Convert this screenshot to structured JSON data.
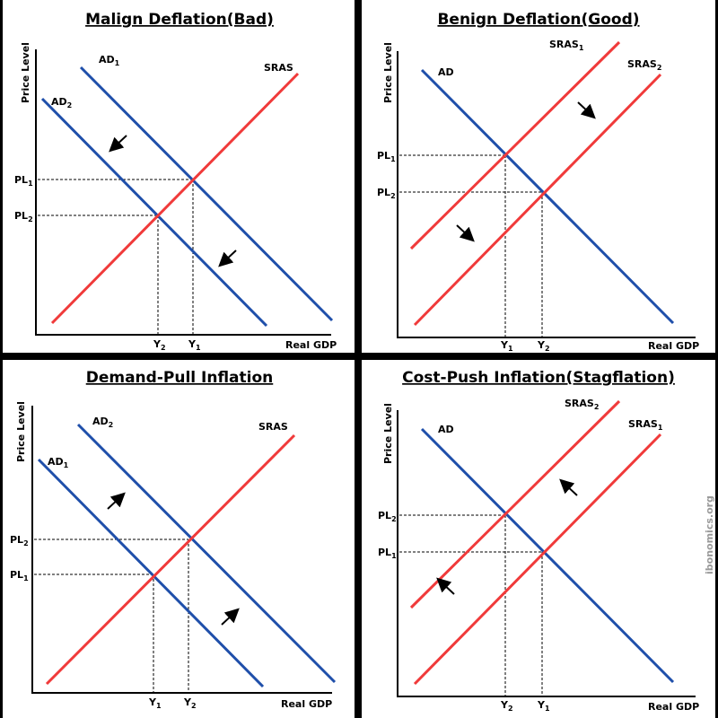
{
  "colors": {
    "demand": "#1f4faa",
    "supply": "#f03a3a",
    "axis": "#000000",
    "frame": "#000000",
    "watermark": "#9a9a9a"
  },
  "watermark": "ibonomics.org",
  "axes": {
    "y": "Price Level",
    "x": "Real GDP"
  },
  "panels": [
    {
      "title": "Malign Deflation(Bad)",
      "ad1": "AD",
      "ad1_sub": "1",
      "ad2": "AD",
      "ad2_sub": "2",
      "sras": "SRAS",
      "pl_a": "PL",
      "pl_a_sub": "1",
      "pl_b": "PL",
      "pl_b_sub": "2",
      "y_a": "Y",
      "y_a_sub": "2",
      "y_b": "Y",
      "y_b_sub": "1",
      "arrow_direction": "down-left"
    },
    {
      "title": "Benign Deflation(Good)",
      "ad": "AD",
      "sras1": "SRAS",
      "sras1_sub": "1",
      "sras2": "SRAS",
      "sras2_sub": "2",
      "pl_a": "PL",
      "pl_a_sub": "1",
      "pl_b": "PL",
      "pl_b_sub": "2",
      "y_a": "Y",
      "y_a_sub": "1",
      "y_b": "Y",
      "y_b_sub": "2",
      "arrow_direction": "down-right"
    },
    {
      "title": "Demand-Pull Inflation",
      "ad1": "AD",
      "ad1_sub": "1",
      "ad2": "AD",
      "ad2_sub": "2",
      "sras": "SRAS",
      "pl_a": "PL",
      "pl_a_sub": "2",
      "pl_b": "PL",
      "pl_b_sub": "1",
      "y_a": "Y",
      "y_a_sub": "1",
      "y_b": "Y",
      "y_b_sub": "2",
      "arrow_direction": "up-right"
    },
    {
      "title": "Cost-Push Inflation(Stagflation)",
      "ad": "AD",
      "sras1": "SRAS",
      "sras1_sub": "1",
      "sras2": "SRAS",
      "sras2_sub": "2",
      "pl_a": "PL",
      "pl_a_sub": "2",
      "pl_b": "PL",
      "pl_b_sub": "1",
      "y_a": "Y",
      "y_a_sub": "2",
      "y_b": "Y",
      "y_b_sub": "1",
      "arrow_direction": "up-left"
    }
  ]
}
